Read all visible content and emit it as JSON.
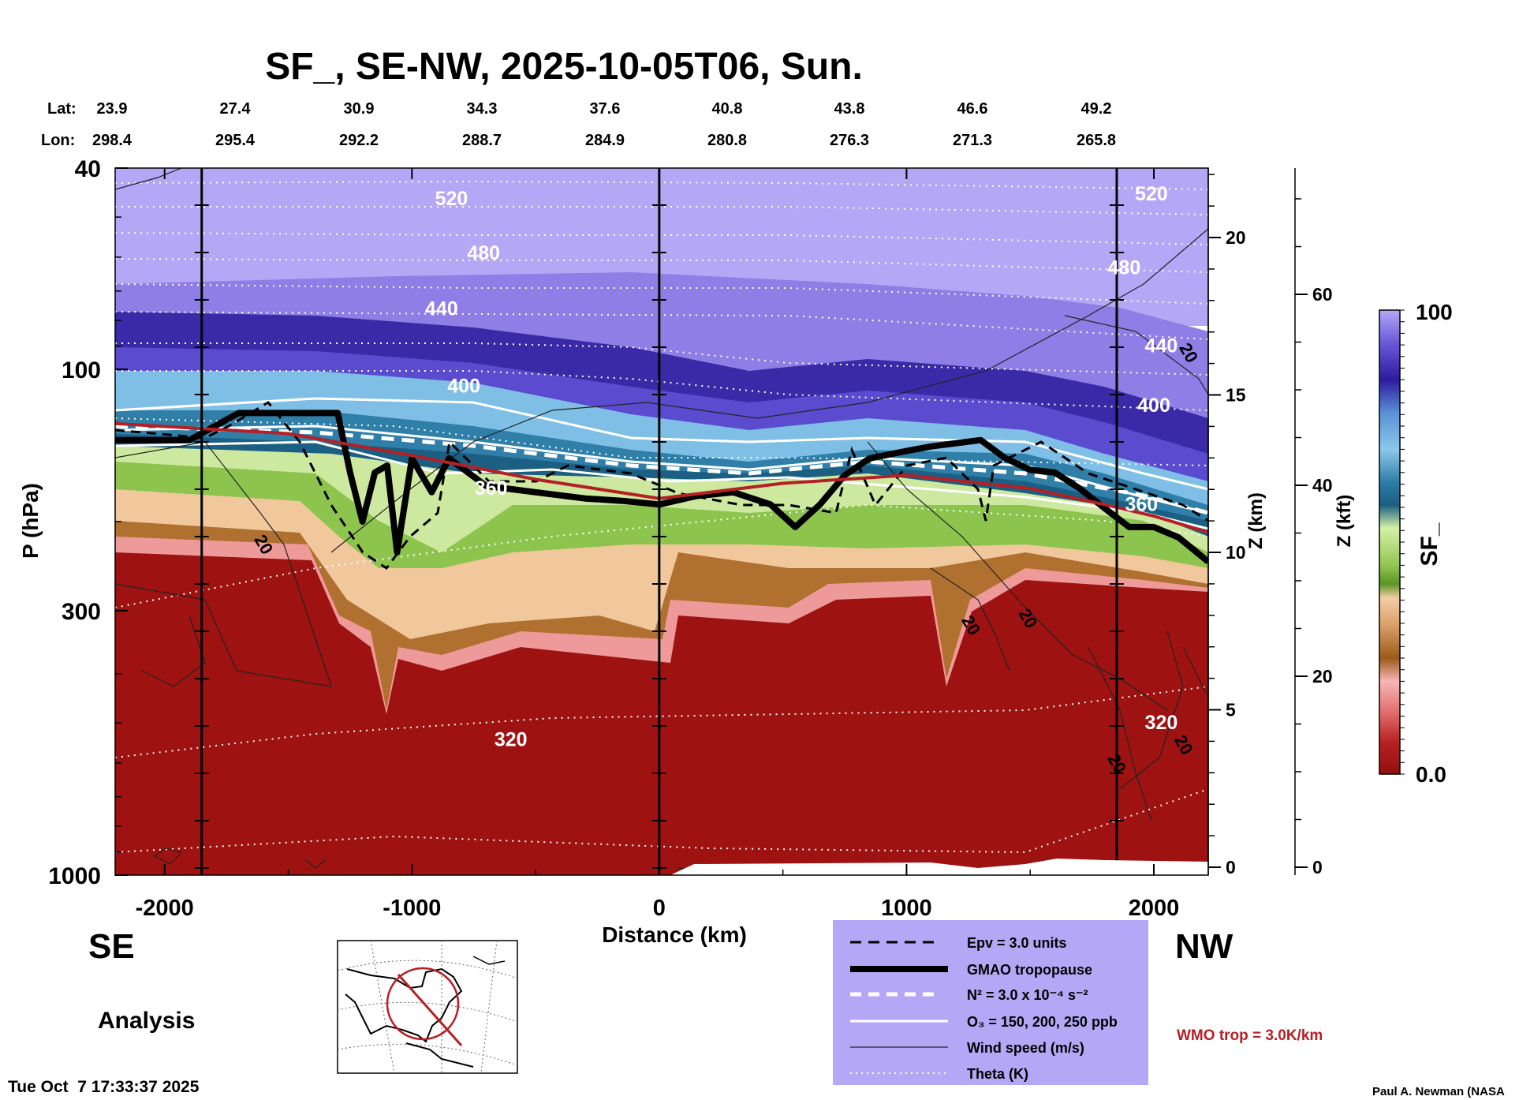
{
  "chart_data": {
    "type": "heatmap",
    "title": "SF_, SE-NW, 2025-10-05T06, Sun.",
    "xlabel": "Distance (km)",
    "ylabel": "P (hPa)",
    "y2label": "Z (km)",
    "y3label": "Z (kft)",
    "colorbar_label": "SF_",
    "xlim": [
      -2200,
      2220
    ],
    "x_ticks": [
      -2000,
      -1000,
      0,
      1000,
      2000
    ],
    "x_tick_labels": [
      "-2000",
      "-1000",
      "0",
      "1000",
      "2000"
    ],
    "p_ticks": [
      40,
      100,
      300,
      1000
    ],
    "p_tick_labels": [
      "40",
      "100",
      "300",
      "1000"
    ],
    "z_km_ticks": [
      0,
      5,
      10,
      15,
      20
    ],
    "z_km_labels": [
      "0",
      "5",
      "10",
      "15",
      "20"
    ],
    "z_kft_ticks": [
      0,
      20,
      40,
      60
    ],
    "z_kft_labels": [
      "0",
      "20",
      "40",
      "60"
    ],
    "colorbar_range": [
      0.0,
      100
    ],
    "colorbar_tick_labels": [
      "100",
      "0.0"
    ],
    "header": {
      "lat_label": "Lat:",
      "lon_label": "Lon:",
      "lats": [
        "23.9",
        "27.4",
        "30.9",
        "34.3",
        "37.6",
        "40.8",
        "43.8",
        "46.6",
        "49.2"
      ],
      "lons": [
        "298.4",
        "295.4",
        "292.2",
        "288.7",
        "284.9",
        "280.8",
        "276.3",
        "271.3",
        "265.8"
      ]
    },
    "section_lines_km": [
      -1850,
      0,
      1850
    ],
    "theta_labels": [
      {
        "value": "520",
        "x_km": -840,
        "p": 46
      },
      {
        "value": "480",
        "x_km": -710,
        "p": 59
      },
      {
        "value": "440",
        "x_km": -880,
        "p": 76
      },
      {
        "value": "400",
        "x_km": -790,
        "p": 108
      },
      {
        "value": "360",
        "x_km": -680,
        "p": 172
      },
      {
        "value": "320",
        "x_km": -600,
        "p": 540
      },
      {
        "value": "520",
        "x_km": 1990,
        "p": 45
      },
      {
        "value": "480",
        "x_km": 1880,
        "p": 63
      },
      {
        "value": "440",
        "x_km": 2030,
        "p": 90
      },
      {
        "value": "400",
        "x_km": 2000,
        "p": 118
      },
      {
        "value": "360",
        "x_km": 1950,
        "p": 185
      },
      {
        "value": "320",
        "x_km": 2030,
        "p": 500
      }
    ],
    "wind_labels": [
      {
        "value": "20",
        "x_km": -1620,
        "p": 225
      },
      {
        "value": "20",
        "x_km": 1240,
        "p": 325
      },
      {
        "value": "20",
        "x_km": 1470,
        "p": 315
      },
      {
        "value": "20",
        "x_km": 2120,
        "p": 94
      },
      {
        "value": "20",
        "x_km": 1830,
        "p": 610
      },
      {
        "value": "20",
        "x_km": 2100,
        "p": 560
      }
    ],
    "gmao_tropopause": {
      "x": [
        -2200,
        -1900,
        -1700,
        -1450,
        -1300,
        -1250,
        -1200,
        -1150,
        -1100,
        -1060,
        -1000,
        -920,
        -850,
        -700,
        -500,
        -300,
        -150,
        0,
        150,
        300,
        450,
        550,
        650,
        750,
        850,
        1000,
        1100,
        1200,
        1300,
        1400,
        1500,
        1600,
        1700,
        1800,
        1900,
        2000,
        2100,
        2220
      ],
      "p": [
        138,
        138,
        122,
        122,
        122,
        160,
        200,
        160,
        155,
        230,
        150,
        175,
        150,
        170,
        175,
        180,
        182,
        185,
        178,
        175,
        185,
        205,
        185,
        162,
        150,
        145,
        142,
        140,
        138,
        150,
        158,
        160,
        172,
        188,
        205,
        205,
        215,
        240
      ]
    },
    "wmo_tropopause": {
      "x": [
        -2200,
        -1500,
        -1000,
        -500,
        0,
        500,
        1000,
        1500,
        1800,
        2000,
        2220
      ],
      "p": [
        128,
        134,
        148,
        165,
        180,
        168,
        162,
        172,
        185,
        195,
        210
      ]
    },
    "legend": {
      "items": [
        {
          "label": "Epv = 3.0 units",
          "style": "dashed-black"
        },
        {
          "label": "GMAO tropopause",
          "style": "thick-black"
        },
        {
          "label": "N² = 3.0 x 10⁻⁴ s⁻²",
          "style": "dashed-white"
        },
        {
          "label": "O₃ = 150, 200, 250 ppb",
          "style": "solid-white"
        },
        {
          "label": "Wind speed (m/s)",
          "style": "thin-black"
        },
        {
          "label": "Theta (K)",
          "style": "dotted-white"
        }
      ],
      "wmo_note": "WMO trop = 3.0K/km",
      "wmo_color": "#b52025"
    },
    "colors": {
      "stratosphere_top": "#b4a8f6",
      "deep_purple": "#3424a6",
      "tropo_red": "#9e1212",
      "legend_bg": "#b4a8f6"
    }
  },
  "labels": {
    "se": "SE",
    "nw": "NW",
    "analysis": "Analysis",
    "timestamp": "Tue Oct  7 17:33:37 2025",
    "credit": "Paul A. Newman (NASA"
  }
}
